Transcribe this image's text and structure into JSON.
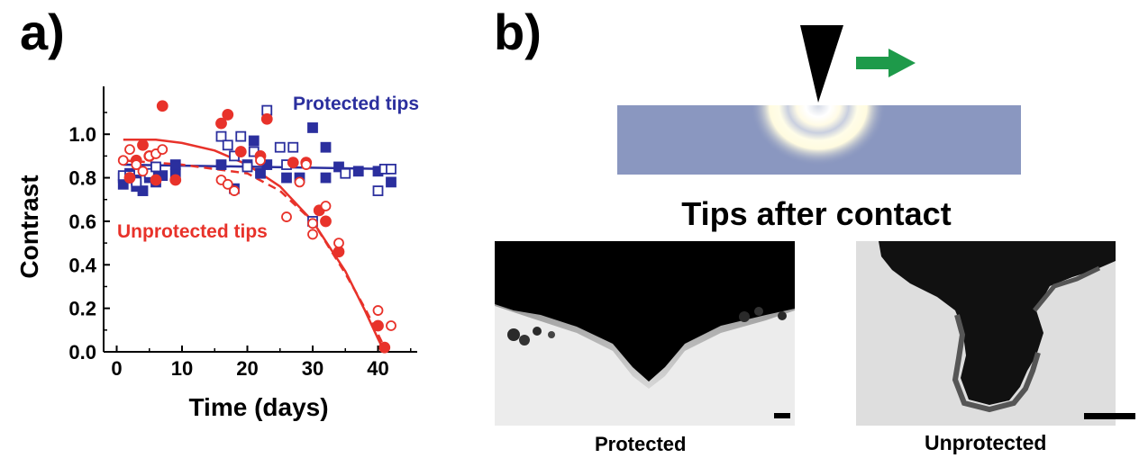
{
  "panel_a_label": "a)",
  "panel_b_label": "b)",
  "chart_data": {
    "type": "scatter",
    "xlabel": "Time (days)",
    "ylabel": "Contrast",
    "xlim": [
      -2,
      46
    ],
    "ylim": [
      0,
      1.22
    ],
    "xticks": [
      0,
      10,
      20,
      30,
      40
    ],
    "yticks": [
      0.0,
      0.2,
      0.4,
      0.6,
      0.8,
      1.0
    ],
    "grid": false,
    "colors": {
      "protected": "#2b2f9e",
      "unprotected": "#e8322a"
    },
    "annotations": [
      {
        "text": "Protected tips",
        "series": "protected"
      },
      {
        "text": "Unprotected tips",
        "series": "unprotected"
      }
    ],
    "series": [
      {
        "group": "protected",
        "marker": "square-filled",
        "points": [
          [
            1,
            0.77
          ],
          [
            1,
            0.8
          ],
          [
            2,
            0.82
          ],
          [
            3,
            0.79
          ],
          [
            3,
            0.76
          ],
          [
            4,
            0.74
          ],
          [
            5,
            0.8
          ],
          [
            6,
            0.83
          ],
          [
            6,
            0.78
          ],
          [
            7,
            0.81
          ],
          [
            9,
            0.82
          ],
          [
            9,
            0.86
          ],
          [
            16,
            0.86
          ],
          [
            18,
            0.75
          ],
          [
            20,
            0.86
          ],
          [
            21,
            0.97
          ],
          [
            22,
            0.82
          ],
          [
            23,
            0.86
          ],
          [
            26,
            0.8
          ],
          [
            28,
            0.8
          ],
          [
            30,
            1.03
          ],
          [
            32,
            0.94
          ],
          [
            32,
            0.8
          ],
          [
            34,
            0.85
          ],
          [
            37,
            0.83
          ],
          [
            40,
            0.83
          ],
          [
            42,
            0.78
          ]
        ]
      },
      {
        "group": "protected",
        "marker": "square-open",
        "points": [
          [
            1,
            0.81
          ],
          [
            2,
            0.81
          ],
          [
            3,
            0.78
          ],
          [
            5,
            0.82
          ],
          [
            6,
            0.85
          ],
          [
            16,
            0.99
          ],
          [
            17,
            0.95
          ],
          [
            18,
            0.9
          ],
          [
            19,
            0.99
          ],
          [
            20,
            0.85
          ],
          [
            21,
            0.92
          ],
          [
            23,
            1.11
          ],
          [
            25,
            0.94
          ],
          [
            26,
            0.86
          ],
          [
            27,
            0.94
          ],
          [
            30,
            0.6
          ],
          [
            35,
            0.82
          ],
          [
            40,
            0.74
          ],
          [
            41,
            0.84
          ],
          [
            42,
            0.84
          ]
        ]
      },
      {
        "group": "unprotected",
        "marker": "circle-filled",
        "points": [
          [
            2,
            0.8
          ],
          [
            3,
            0.88
          ],
          [
            4,
            0.95
          ],
          [
            5,
            0.9
          ],
          [
            6,
            0.79
          ],
          [
            7,
            1.13
          ],
          [
            9,
            0.79
          ],
          [
            16,
            1.05
          ],
          [
            17,
            1.09
          ],
          [
            19,
            0.92
          ],
          [
            22,
            0.9
          ],
          [
            23,
            1.07
          ],
          [
            27,
            0.87
          ],
          [
            29,
            0.87
          ],
          [
            31,
            0.65
          ],
          [
            32,
            0.6
          ],
          [
            34,
            0.46
          ],
          [
            40,
            0.12
          ],
          [
            41,
            0.02
          ]
        ]
      },
      {
        "group": "unprotected",
        "marker": "circle-open",
        "points": [
          [
            1,
            0.88
          ],
          [
            2,
            0.93
          ],
          [
            3,
            0.86
          ],
          [
            4,
            0.83
          ],
          [
            5,
            0.9
          ],
          [
            6,
            0.91
          ],
          [
            7,
            0.93
          ],
          [
            16,
            0.79
          ],
          [
            17,
            0.77
          ],
          [
            18,
            0.74
          ],
          [
            22,
            0.88
          ],
          [
            26,
            0.62
          ],
          [
            28,
            0.78
          ],
          [
            29,
            0.86
          ],
          [
            30,
            0.59
          ],
          [
            30,
            0.54
          ],
          [
            32,
            0.67
          ],
          [
            34,
            0.5
          ],
          [
            40,
            0.19
          ],
          [
            42,
            0.12
          ]
        ]
      },
      {
        "group": "protected",
        "kind": "fit",
        "style": "solid",
        "points": [
          [
            1,
            0.86
          ],
          [
            42,
            0.84
          ]
        ]
      },
      {
        "group": "unprotected",
        "kind": "fit",
        "style": "solid",
        "points": [
          [
            1,
            0.975
          ],
          [
            6,
            0.975
          ],
          [
            10,
            0.96
          ],
          [
            15,
            0.925
          ],
          [
            20,
            0.86
          ],
          [
            25,
            0.76
          ],
          [
            30,
            0.6
          ],
          [
            35,
            0.37
          ],
          [
            38,
            0.19
          ],
          [
            40,
            0.06
          ],
          [
            41,
            0.0
          ]
        ]
      },
      {
        "group": "unprotected",
        "kind": "fit",
        "style": "dashed",
        "points": [
          [
            1,
            0.88
          ],
          [
            10,
            0.86
          ],
          [
            20,
            0.82
          ],
          [
            25,
            0.74
          ],
          [
            30,
            0.6
          ],
          [
            35,
            0.36
          ],
          [
            38,
            0.2
          ],
          [
            41,
            0.02
          ]
        ]
      }
    ]
  },
  "panel_b": {
    "heading": "Tips after contact",
    "caption_left": "Protected",
    "caption_right": "Unprotected",
    "colors": {
      "substrate": "#8a97c0",
      "tip": "#000000",
      "arrow": "#1e9a4a",
      "tem_background": "#e6e6e6"
    },
    "arrow_icon": "right-arrow-icon"
  }
}
